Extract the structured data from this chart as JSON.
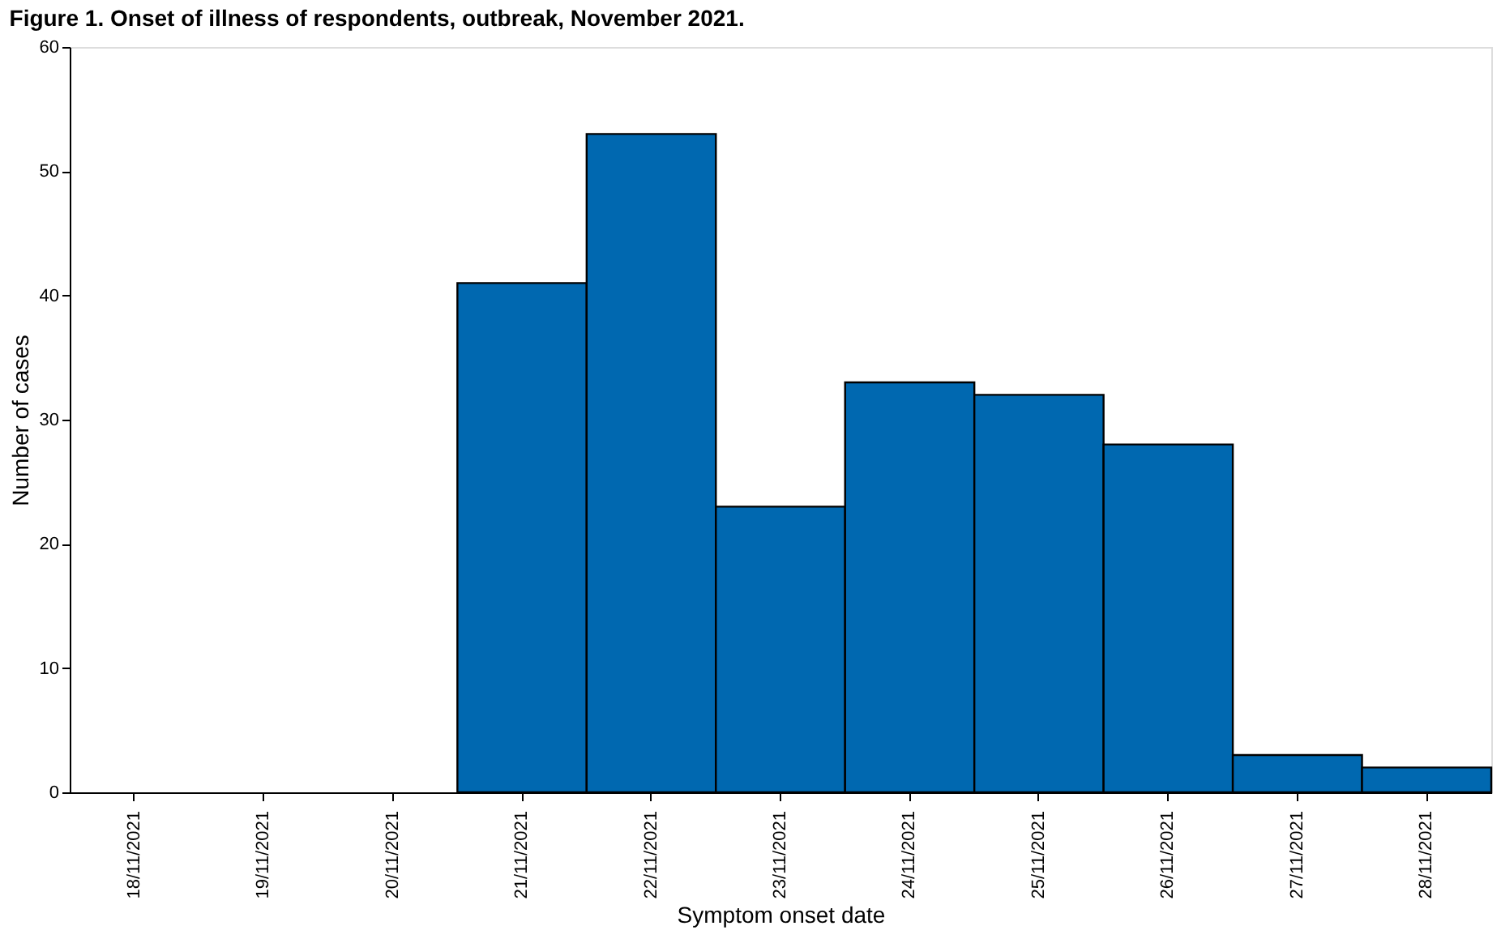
{
  "chart_data": {
    "type": "bar",
    "title": "Figure 1. Onset of illness of respondents, outbreak, November 2021.",
    "xlabel": "Symptom onset date",
    "ylabel": "Number of cases",
    "categories": [
      "18/11/2021",
      "19/11/2021",
      "20/11/2021",
      "21/11/2021",
      "22/11/2021",
      "23/11/2021",
      "24/11/2021",
      "25/11/2021",
      "26/11/2021",
      "27/11/2021",
      "28/11/2021"
    ],
    "values": [
      0,
      0,
      0,
      41,
      53,
      23,
      33,
      32,
      28,
      3,
      2
    ],
    "color": "#0068b0",
    "ylim": [
      0,
      60
    ],
    "yticks": [
      0,
      10,
      20,
      30,
      40,
      50,
      60
    ],
    "grid": false
  }
}
